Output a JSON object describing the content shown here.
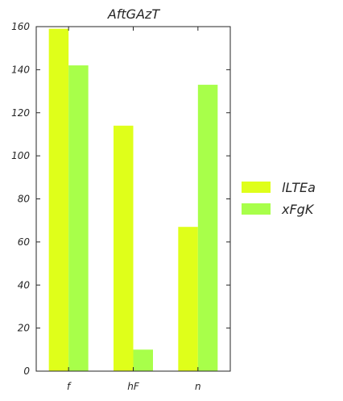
{
  "chart_data": {
    "type": "bar",
    "title": "AftGAzT",
    "xlabel": "",
    "ylabel": "",
    "categories": [
      "f",
      "hF",
      "n"
    ],
    "series": [
      {
        "name": "lLTEa",
        "values": [
          159,
          114,
          67
        ],
        "color": "#dfff1a"
      },
      {
        "name": "xFgK",
        "values": [
          142,
          10,
          133
        ],
        "color": "#a8ff4a"
      }
    ],
    "ylim": [
      0,
      160
    ],
    "yticks": [
      0,
      20,
      40,
      60,
      80,
      100,
      120,
      140,
      160
    ],
    "grid": false,
    "legend_position": "right"
  }
}
